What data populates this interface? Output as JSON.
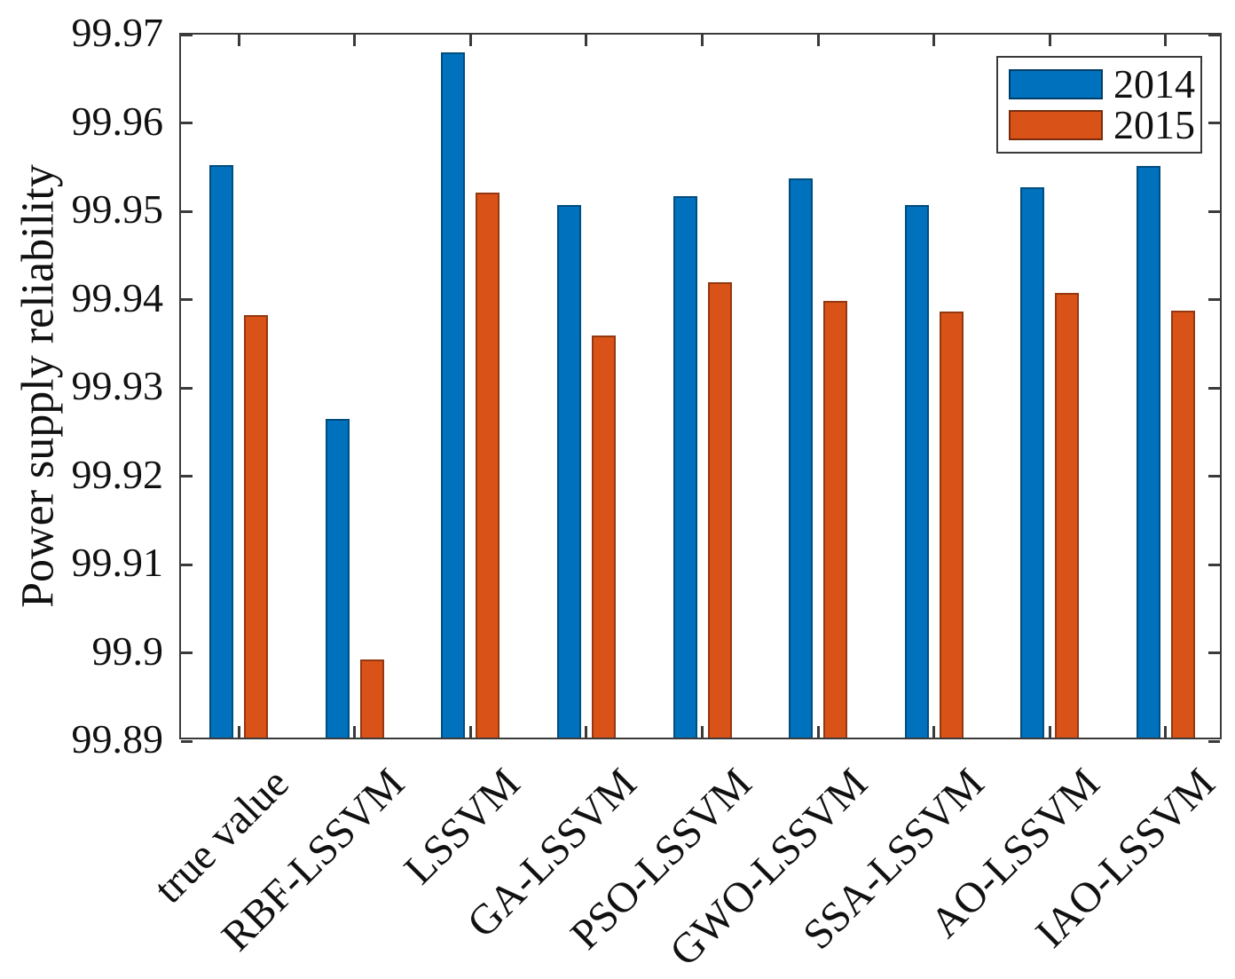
{
  "figure": {
    "background": "#ffffff",
    "axis_color": "#3a3a3a",
    "text_color": "#111111"
  },
  "chart_data": {
    "type": "bar",
    "title": "",
    "xlabel": "",
    "ylabel": "Power supply reliability",
    "categories": [
      "true value",
      "RBF-LSSVM",
      "LSSVM",
      "GA-LSSVM",
      "PSO-LSSVM",
      "GWO-LSSVM",
      "SSA-LSSVM",
      "AO-LSSVM",
      "IAO-LSSVM"
    ],
    "series": [
      {
        "name": "2014",
        "color": "#0072BD",
        "values": [
          99.9548,
          99.9261,
          99.9676,
          99.9503,
          99.9513,
          99.9533,
          99.9503,
          99.9523,
          99.9547
        ]
      },
      {
        "name": "2015",
        "color": "#D95319",
        "values": [
          99.9378,
          99.8988,
          99.9517,
          99.9355,
          99.9416,
          99.9394,
          99.9382,
          99.9404,
          99.9383
        ]
      }
    ],
    "ylim": [
      99.89,
      99.97
    ],
    "ytick_labels": [
      "99.89",
      "99.9",
      "99.91",
      "99.92",
      "99.93",
      "99.94",
      "99.95",
      "99.96",
      "99.97"
    ],
    "grid": false,
    "legend_position": "top-right",
    "x_label_rotation_deg": 45
  }
}
